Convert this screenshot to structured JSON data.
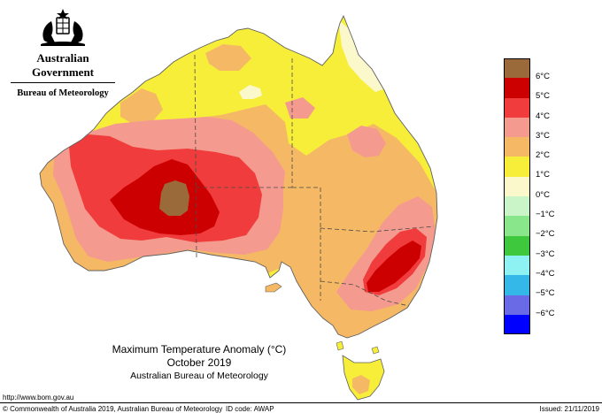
{
  "header": {
    "government": "Australian Government",
    "bureau": "Bureau of Meteorology"
  },
  "caption": {
    "title": "Maximum Temperature Anomaly (°C)",
    "period": "October 2019",
    "organisation": "Australian Bureau of Meteorology"
  },
  "footer": {
    "url": "http://www.bom.gov.au",
    "copyright": "© Commonwealth of Australia 2019, Australian Bureau of Meteorology",
    "id_code": "ID code: AWAP",
    "issued": "Issued: 21/11/2019"
  },
  "legend": [
    {
      "label": "6°C",
      "color": "#9a6a3a"
    },
    {
      "label": "5°C",
      "color": "#cc0000"
    },
    {
      "label": "4°C",
      "color": "#f03c3c"
    },
    {
      "label": "3°C",
      "color": "#f59a8e"
    },
    {
      "label": "2°C",
      "color": "#f5b865"
    },
    {
      "label": "1°C",
      "color": "#f7ee3a"
    },
    {
      "label": "0°C",
      "color": "#fbf8cc"
    },
    {
      "label": "−1°C",
      "color": "#c9f5c9"
    },
    {
      "label": "−2°C",
      "color": "#8ae68a"
    },
    {
      "label": "−3°C",
      "color": "#3ec83e"
    },
    {
      "label": "−4°C",
      "color": "#8ff2f2"
    },
    {
      "label": "−5°C",
      "color": "#33b8e8"
    },
    {
      "label": "−6°C",
      "color": "#6a6ae6"
    },
    {
      "label": "",
      "color": "#0000ff"
    }
  ]
}
